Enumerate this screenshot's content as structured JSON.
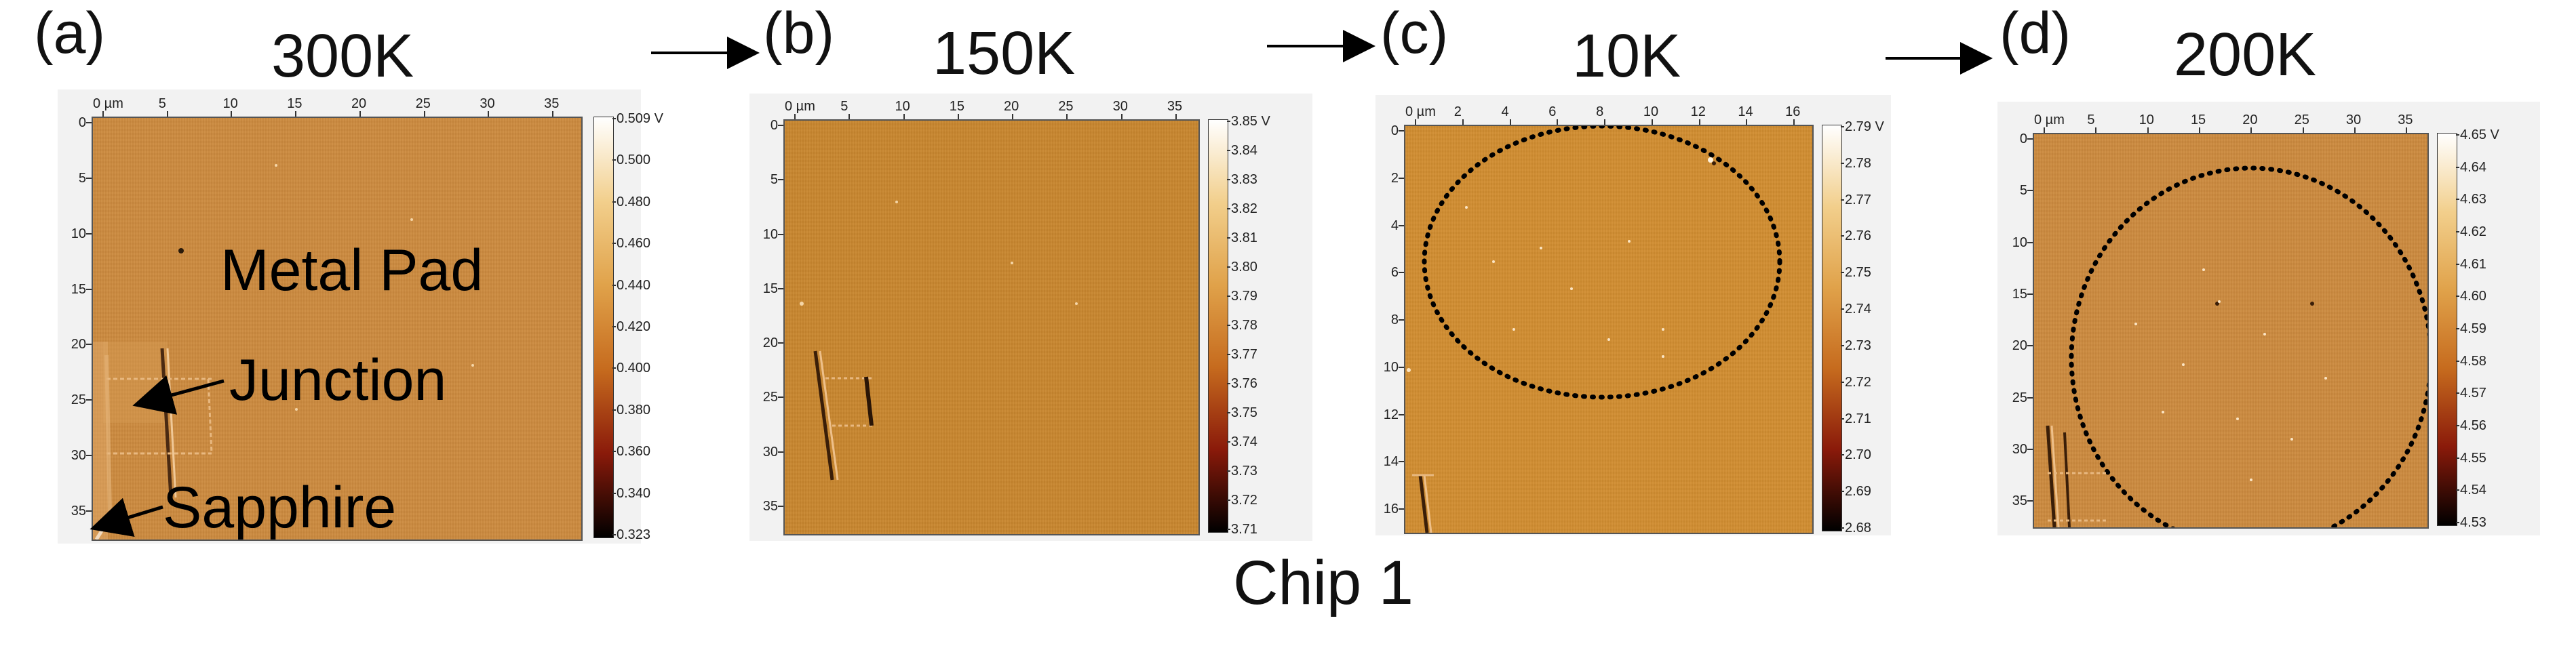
{
  "figure": {
    "bottom_title": "Chip 1",
    "colors": {
      "afm_orange": "#cc8a3e",
      "afm_orange_b": "#c8862e",
      "afm_orange_c": "#d18d30",
      "colorbar_top": "#ffffff",
      "colorbar_mid": "#d98a2a",
      "colorbar_low": "#8a1a0a",
      "colorbar_bottom": "#000000"
    }
  },
  "panels": [
    {
      "letter": "(a)",
      "temperature": "300K",
      "x_ticks": [
        "0 µm",
        "5",
        "10",
        "15",
        "20",
        "25",
        "30",
        "35"
      ],
      "y_ticks": [
        "0",
        "5",
        "10",
        "15",
        "20",
        "25",
        "30",
        "35"
      ],
      "colorbar": [
        "0.509 V",
        "0.500",
        "0.480",
        "0.460",
        "0.440",
        "0.420",
        "0.400",
        "0.380",
        "0.360",
        "0.340",
        "0.323"
      ],
      "annotations": {
        "metal_pad": "Metal Pad",
        "junction": "Junction",
        "sapphire": "Sapphire"
      }
    },
    {
      "letter": "(b)",
      "temperature": "150K",
      "x_ticks": [
        "0 µm",
        "5",
        "10",
        "15",
        "20",
        "25",
        "30",
        "35"
      ],
      "y_ticks": [
        "0",
        "5",
        "10",
        "15",
        "20",
        "25",
        "30",
        "35"
      ],
      "colorbar": [
        "3.85 V",
        "3.84",
        "3.83",
        "3.82",
        "3.81",
        "3.80",
        "3.79",
        "3.78",
        "3.77",
        "3.76",
        "3.75",
        "3.74",
        "3.73",
        "3.72",
        "3.71"
      ]
    },
    {
      "letter": "(c)",
      "temperature": "10K",
      "x_ticks": [
        "0 µm",
        "2",
        "4",
        "6",
        "8",
        "10",
        "12",
        "14",
        "16"
      ],
      "y_ticks": [
        "0",
        "2",
        "4",
        "6",
        "8",
        "10",
        "12",
        "14",
        "16"
      ],
      "colorbar": [
        "2.79 V",
        "2.78",
        "2.77",
        "2.76",
        "2.75",
        "2.74",
        "2.73",
        "2.72",
        "2.71",
        "2.70",
        "2.69",
        "2.68"
      ]
    },
    {
      "letter": "(d)",
      "temperature": "200K",
      "x_ticks": [
        "0 µm",
        "5",
        "10",
        "15",
        "20",
        "25",
        "30",
        "35"
      ],
      "y_ticks": [
        "0",
        "5",
        "10",
        "15",
        "20",
        "25",
        "30",
        "35"
      ],
      "colorbar": [
        "4.65 V",
        "4.64",
        "4.63",
        "4.62",
        "4.61",
        "4.60",
        "4.59",
        "4.58",
        "4.57",
        "4.56",
        "4.55",
        "4.54",
        "4.53"
      ]
    }
  ]
}
